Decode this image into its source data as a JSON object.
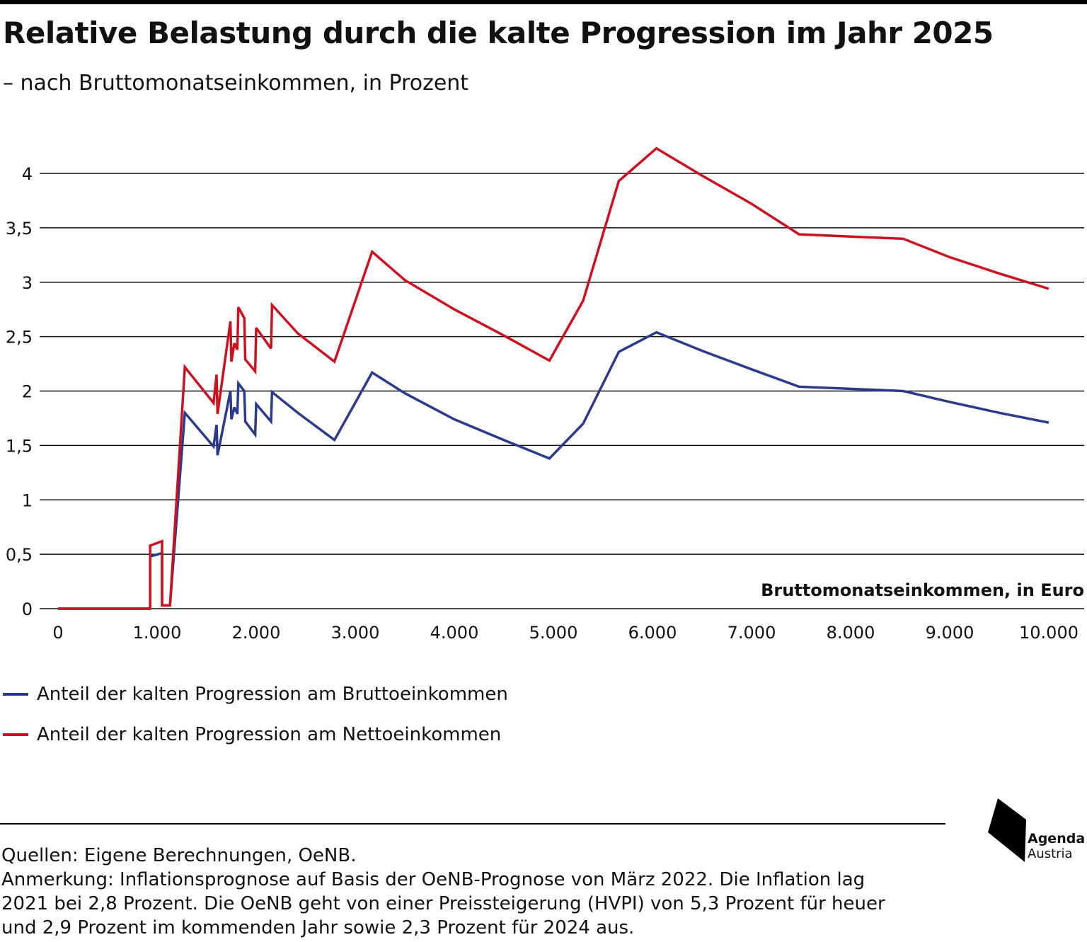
{
  "header": {
    "title": "Relative Belastung durch die kalte Progression im Jahr 2025",
    "subtitle": "– nach Bruttomonatseinkommen, in Prozent"
  },
  "colors": {
    "blue": "#2B3A8C",
    "red": "#CC1120",
    "grid": "#111111"
  },
  "chart_data": {
    "type": "line",
    "title": "Relative Belastung durch die kalte Progression im Jahr 2025",
    "subtitle": "– nach Bruttomonatseinkommen, in Prozent",
    "xlabel": "Bruttomonatseinkommen, in Euro",
    "ylabel": "",
    "xlim": [
      0,
      10000
    ],
    "ylim": [
      0,
      4.25
    ],
    "x_ticks": [
      {
        "value": 0,
        "label": "0"
      },
      {
        "value": 1000,
        "label": "1.000"
      },
      {
        "value": 2000,
        "label": "2.000"
      },
      {
        "value": 3000,
        "label": "3.000"
      },
      {
        "value": 4000,
        "label": "4.000"
      },
      {
        "value": 5000,
        "label": "5.000"
      },
      {
        "value": 6000,
        "label": "6.000"
      },
      {
        "value": 7000,
        "label": "7.000"
      },
      {
        "value": 8000,
        "label": "8.000"
      },
      {
        "value": 9000,
        "label": "9.000"
      },
      {
        "value": 10000,
        "label": "10.000"
      }
    ],
    "y_ticks": [
      {
        "value": 0,
        "label": "0"
      },
      {
        "value": 0.5,
        "label": "0,5"
      },
      {
        "value": 1,
        "label": "1"
      },
      {
        "value": 1.5,
        "label": "1,5"
      },
      {
        "value": 2,
        "label": "2"
      },
      {
        "value": 2.5,
        "label": "2,5"
      },
      {
        "value": 3,
        "label": "3"
      },
      {
        "value": 3.5,
        "label": "3,5"
      },
      {
        "value": 4,
        "label": "4"
      }
    ],
    "grid": "horizontal",
    "legend_position": "bottom-left",
    "series": [
      {
        "name": "Anteil der kalten Progression am Bruttoeinkommen",
        "color": "#2B3A8C",
        "points": [
          [
            0,
            0
          ],
          [
            930,
            0
          ],
          [
            930,
            0.48
          ],
          [
            1050,
            0.51
          ],
          [
            1050,
            0.03
          ],
          [
            1130,
            0.03
          ],
          [
            1280,
            1.8
          ],
          [
            1570,
            1.49
          ],
          [
            1600,
            1.69
          ],
          [
            1610,
            1.41
          ],
          [
            1740,
            2.0
          ],
          [
            1750,
            1.74
          ],
          [
            1780,
            1.85
          ],
          [
            1810,
            1.79
          ],
          [
            1820,
            2.07
          ],
          [
            1880,
            2.0
          ],
          [
            1890,
            1.72
          ],
          [
            1990,
            1.6
          ],
          [
            2000,
            1.88
          ],
          [
            2150,
            1.72
          ],
          [
            2160,
            1.99
          ],
          [
            2420,
            1.8
          ],
          [
            2790,
            1.55
          ],
          [
            3170,
            2.17
          ],
          [
            3500,
            1.98
          ],
          [
            4000,
            1.74
          ],
          [
            4500,
            1.55
          ],
          [
            4960,
            1.38
          ],
          [
            5300,
            1.7
          ],
          [
            5660,
            2.36
          ],
          [
            6040,
            2.54
          ],
          [
            6500,
            2.37
          ],
          [
            7000,
            2.2
          ],
          [
            7480,
            2.04
          ],
          [
            8000,
            2.02
          ],
          [
            8530,
            2.0
          ],
          [
            9000,
            1.9
          ],
          [
            9500,
            1.8
          ],
          [
            10000,
            1.71
          ]
        ]
      },
      {
        "name": "Anteil der kalten Progression am Nettoeinkommen",
        "color": "#CC1120",
        "points": [
          [
            0,
            0
          ],
          [
            930,
            0
          ],
          [
            930,
            0.58
          ],
          [
            1050,
            0.62
          ],
          [
            1050,
            0.03
          ],
          [
            1130,
            0.03
          ],
          [
            1280,
            2.22
          ],
          [
            1570,
            1.89
          ],
          [
            1600,
            2.15
          ],
          [
            1610,
            1.79
          ],
          [
            1740,
            2.64
          ],
          [
            1750,
            2.27
          ],
          [
            1780,
            2.44
          ],
          [
            1810,
            2.38
          ],
          [
            1820,
            2.77
          ],
          [
            1880,
            2.67
          ],
          [
            1890,
            2.29
          ],
          [
            1990,
            2.18
          ],
          [
            2000,
            2.58
          ],
          [
            2150,
            2.39
          ],
          [
            2160,
            2.79
          ],
          [
            2420,
            2.53
          ],
          [
            2790,
            2.27
          ],
          [
            3170,
            3.28
          ],
          [
            3500,
            3.02
          ],
          [
            4000,
            2.75
          ],
          [
            4500,
            2.51
          ],
          [
            4960,
            2.28
          ],
          [
            5300,
            2.83
          ],
          [
            5660,
            3.93
          ],
          [
            6040,
            4.23
          ],
          [
            6500,
            3.98
          ],
          [
            7000,
            3.72
          ],
          [
            7480,
            3.44
          ],
          [
            8000,
            3.42
          ],
          [
            8530,
            3.4
          ],
          [
            9000,
            3.23
          ],
          [
            9500,
            3.08
          ],
          [
            10000,
            2.94
          ]
        ]
      }
    ]
  },
  "footer": {
    "sources": "Quellen: Eigene Berechnungen, OeNB.",
    "note_line1": "Anmerkung: Inflationsprognose auf Basis der OeNB-Prognose von März 2022. Die Inflation lag",
    "note_line2": "2021 bei 2,8 Prozent. Die OeNB geht von einer Preissteigerung (HVPI) von 5,3 Prozent für heuer",
    "note_line3": "und 2,9 Prozent im kommenden Jahr sowie 2,3 Prozent für 2024 aus."
  },
  "logo": {
    "name": "Agenda",
    "sub": "Austria"
  }
}
